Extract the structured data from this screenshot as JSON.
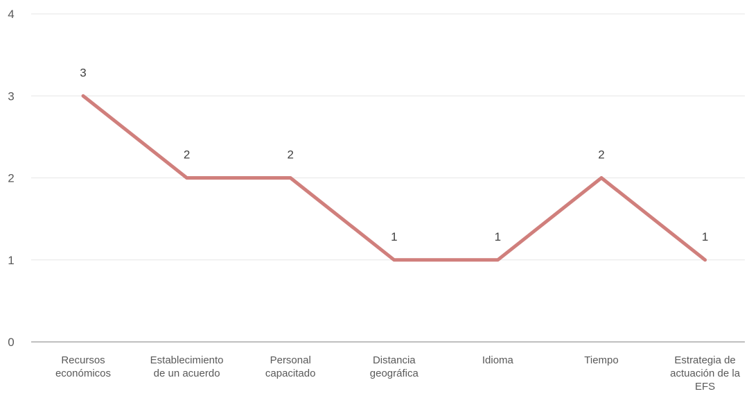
{
  "chart_data": {
    "type": "line",
    "categories": [
      [
        "Recursos",
        "económicos"
      ],
      [
        "Establecimiento",
        "de un acuerdo"
      ],
      [
        "Personal",
        "capacitado"
      ],
      [
        "Distancia",
        "geográfica"
      ],
      [
        "Idioma"
      ],
      [
        "Tiempo"
      ],
      [
        "Estrategia de",
        "actuación de la",
        "EFS"
      ]
    ],
    "series": [
      {
        "values": [
          3,
          2,
          2,
          1,
          1,
          2,
          1
        ],
        "color": "#d07f7c"
      }
    ],
    "data_labels": [
      "3",
      "2",
      "2",
      "1",
      "1",
      "2",
      "1"
    ],
    "ylim": [
      0,
      4
    ],
    "yticks": [
      "0",
      "1",
      "2",
      "3",
      "4"
    ],
    "grid": true,
    "legend": "none",
    "title": "",
    "xlabel": "",
    "ylabel": ""
  }
}
